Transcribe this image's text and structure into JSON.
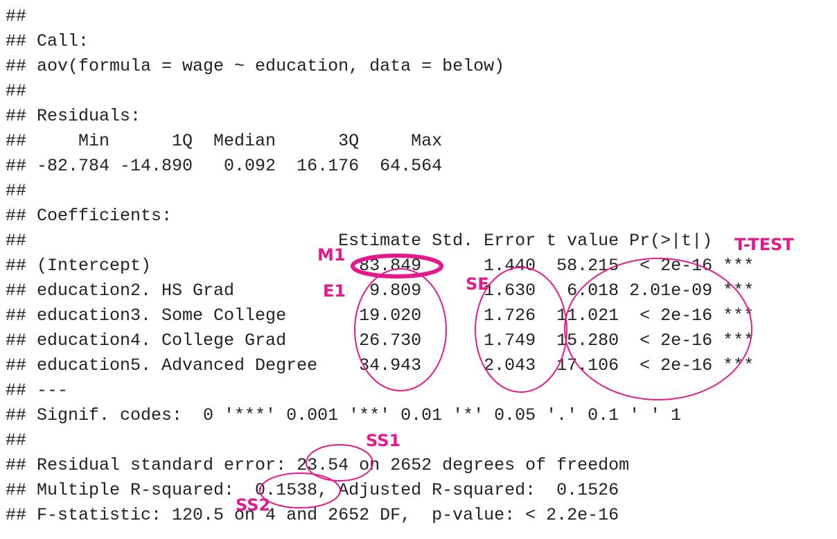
{
  "console": {
    "lines": [
      "##",
      "## Call:",
      "## aov(formula = wage ~ education, data = below)",
      "##",
      "## Residuals:",
      "##     Min      1Q  Median      3Q     Max",
      "## -82.784 -14.890   0.092  16.176  64.564",
      "##",
      "## Coefficients:",
      "##                              Estimate Std. Error t value Pr(>|t|)",
      "## (Intercept)                    83.849      1.440  58.215  < 2e-16 ***",
      "## education2. HS Grad             9.809      1.630   6.018 2.01e-09 ***",
      "## education3. Some College       19.020      1.726  11.021  < 2e-16 ***",
      "## education4. College Grad       26.730      1.749  15.280  < 2e-16 ***",
      "## education5. Advanced Degree    34.943      2.043  17.106  < 2e-16 ***",
      "## ---",
      "## Signif. codes:  0 '***' 0.001 '**' 0.01 '*' 0.05 '.' 0.1 ' ' 1",
      "##",
      "## Residual standard error: 23.54 on 2652 degrees of freedom",
      "## Multiple R-squared:  0.1538, Adjusted R-squared:  0.1526",
      "## F-statistic: 120.5 on 4 and 2652 DF,  p-value: < 2.2e-16"
    ]
  },
  "annotations": {
    "m1": "M1",
    "e1": "E1",
    "se": "SE",
    "ttest": "T-TEST",
    "ss1": "SS1",
    "ss2": "SS2"
  },
  "colors": {
    "annotation": "#e6198c",
    "text": "#222222"
  }
}
